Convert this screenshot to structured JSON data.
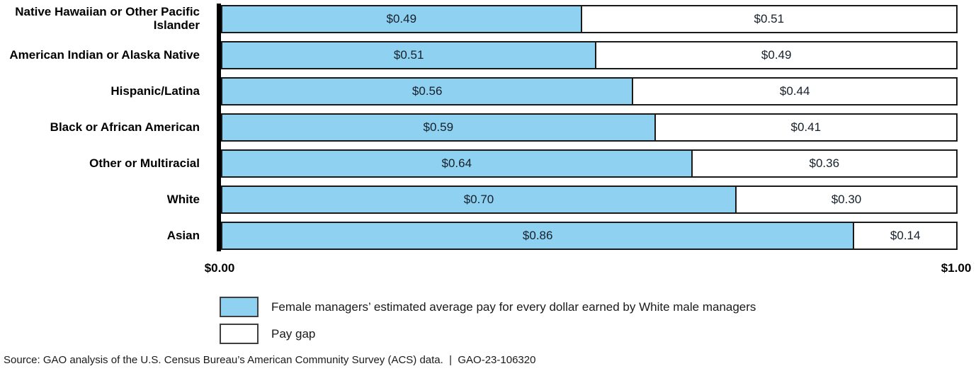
{
  "chart_data": {
    "type": "bar",
    "orientation": "horizontal",
    "stacked": true,
    "categories": [
      "Native Hawaiian or Other Pacific Islander",
      "American Indian or Alaska Native",
      "Hispanic/Latina",
      "Black or African American",
      "Other or Multiracial",
      "White",
      "Asian"
    ],
    "series": [
      {
        "name": "Female managers’ estimated average pay for every dollar earned by White male managers",
        "color": "#8FD1F0",
        "values": [
          0.49,
          0.51,
          0.56,
          0.59,
          0.64,
          0.7,
          0.86
        ],
        "labels": [
          "$0.49",
          "$0.51",
          "$0.56",
          "$0.59",
          "$0.64",
          "$0.70",
          "$0.86"
        ]
      },
      {
        "name": "Pay gap",
        "color": "#FFFFFF",
        "values": [
          0.51,
          0.49,
          0.44,
          0.41,
          0.36,
          0.3,
          0.14
        ],
        "labels": [
          "$0.51",
          "$0.49",
          "$0.44",
          "$0.41",
          "$0.36",
          "$0.30",
          "$0.14"
        ]
      }
    ],
    "xlim": [
      0,
      1
    ],
    "x_tick_labels": [
      "$0.00",
      "$1.00"
    ],
    "grid": false,
    "legend_position": "bottom-left",
    "axis_line_color": "#000000",
    "bar_border_color": "#1a1a1a",
    "value_label_color": "#15202b"
  },
  "source": {
    "text": "Source: GAO analysis of the U.S. Census Bureau’s American Community Survey (ACS) data.  |  GAO-23-106320"
  }
}
